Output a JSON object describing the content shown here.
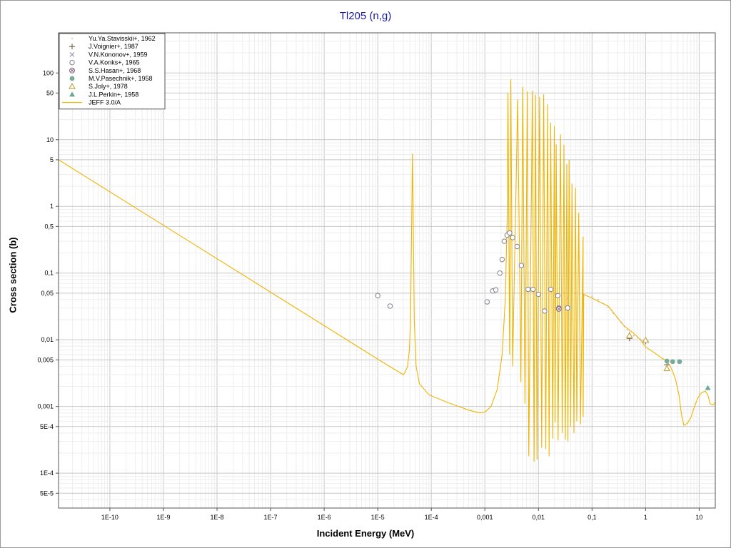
{
  "chart_data": {
    "type": "scatter",
    "title": "Tl205 (n,g)",
    "xlabel": "Incident Energy (MeV)",
    "ylabel": "Cross section (b)",
    "xscale": "log",
    "yscale": "log",
    "xlim": [
      1.1e-11,
      20
    ],
    "ylim": [
      3e-05,
      400
    ],
    "grid": true,
    "legend_position": "top-left",
    "x_tick_labels": [
      {
        "v": 1e-10,
        "t": "1E-10"
      },
      {
        "v": 1e-09,
        "t": "1E-9"
      },
      {
        "v": 1e-08,
        "t": "1E-8"
      },
      {
        "v": 1e-07,
        "t": "1E-7"
      },
      {
        "v": 1e-06,
        "t": "1E-6"
      },
      {
        "v": 1e-05,
        "t": "1E-5"
      },
      {
        "v": 0.0001,
        "t": "1E-4"
      },
      {
        "v": 0.001,
        "t": "0,001"
      },
      {
        "v": 0.01,
        "t": "0,01"
      },
      {
        "v": 0.1,
        "t": "0,1"
      },
      {
        "v": 1,
        "t": "1"
      },
      {
        "v": 10,
        "t": "10"
      }
    ],
    "y_tick_labels": [
      {
        "v": 5e-05,
        "t": "5E-5"
      },
      {
        "v": 0.0001,
        "t": "1E-4"
      },
      {
        "v": 0.0005,
        "t": "5E-4"
      },
      {
        "v": 0.001,
        "t": "0,001"
      },
      {
        "v": 0.005,
        "t": "0,005"
      },
      {
        "v": 0.01,
        "t": "0,01"
      },
      {
        "v": 0.05,
        "t": "0,05"
      },
      {
        "v": 0.1,
        "t": "0,1"
      },
      {
        "v": 0.5,
        "t": "0,5"
      },
      {
        "v": 1,
        "t": "1"
      },
      {
        "v": 5,
        "t": "5"
      },
      {
        "v": 10,
        "t": "10"
      },
      {
        "v": 50,
        "t": "50"
      },
      {
        "v": 100,
        "t": "100"
      }
    ],
    "legend": [
      {
        "label": "Yu.Ya.Stavisskii+, 1962",
        "marker": "dot",
        "color": "#c2a898"
      },
      {
        "label": "J.Voignier+, 1987",
        "marker": "plus",
        "color": "#7a6a4a"
      },
      {
        "label": "V.N.Kononov+, 1959",
        "marker": "cross",
        "color": "#9a9aaa"
      },
      {
        "label": "V.A.Konks+, 1965",
        "marker": "circle",
        "color": "#8a8a98"
      },
      {
        "label": "S.S.Hasan+, 1968",
        "marker": "circlex",
        "color": "#8a6a8a"
      },
      {
        "label": "M.V.Pasechnik+, 1958",
        "marker": "filledcircle",
        "color": "#7aaa9a"
      },
      {
        "label": "S.Joly+, 1978",
        "marker": "triangle",
        "color": "#c0a040"
      },
      {
        "label": "J.L.Perkin+, 1958",
        "marker": "filledtriangle",
        "color": "#6aa898"
      },
      {
        "label": "JEFF 3.0/A",
        "marker": "line",
        "color": "#f0b400"
      }
    ],
    "series": [
      {
        "name": "V.A.Konks+, 1965",
        "points": [
          [
            1e-05,
            0.046
          ],
          [
            1.7e-05,
            0.032
          ],
          [
            0.0011,
            0.037
          ],
          [
            0.0014,
            0.054
          ],
          [
            0.0016,
            0.056
          ],
          [
            0.0019,
            0.1
          ],
          [
            0.0021,
            0.16
          ],
          [
            0.0023,
            0.3
          ],
          [
            0.0026,
            0.37
          ],
          [
            0.0029,
            0.4
          ],
          [
            0.0033,
            0.34
          ],
          [
            0.004,
            0.25
          ],
          [
            0.0048,
            0.13
          ],
          [
            0.0064,
            0.057
          ],
          [
            0.0079,
            0.057
          ],
          [
            0.01,
            0.048
          ],
          [
            0.013,
            0.027
          ],
          [
            0.017,
            0.057
          ],
          [
            0.023,
            0.046
          ],
          [
            0.024,
            0.03
          ],
          [
            0.035,
            0.03
          ]
        ]
      },
      {
        "name": "S.S.Hasan+, 1968",
        "points": [
          [
            0.024,
            0.029
          ]
        ]
      },
      {
        "name": "J.Voignier+, 1987",
        "points": [
          [
            0.5,
            0.0105
          ],
          [
            1.0,
            0.0095
          ],
          [
            2.5,
            0.0042
          ]
        ]
      },
      {
        "name": "S.Joly+, 1978",
        "points": [
          [
            0.5,
            0.0115
          ],
          [
            1.0,
            0.0098
          ],
          [
            2.5,
            0.0037
          ]
        ]
      },
      {
        "name": "M.V.Pasechnik+, 1958",
        "points": [
          [
            2.5,
            0.0048
          ],
          [
            3.2,
            0.0047
          ],
          [
            4.3,
            0.0047
          ]
        ]
      },
      {
        "name": "J.L.Perkin+, 1958",
        "points": [
          [
            14.5,
            0.0019
          ]
        ]
      },
      {
        "name": "Yu.Ya.Stavisskii+, 1962",
        "points": [
          [
            0.025,
            0.045
          ],
          [
            0.03,
            0.05
          ],
          [
            0.035,
            0.042
          ],
          [
            0.05,
            0.05
          ],
          [
            0.07,
            0.048
          ],
          [
            0.1,
            0.045
          ],
          [
            0.13,
            0.04
          ],
          [
            0.16,
            0.035
          ],
          [
            0.2,
            0.031
          ],
          [
            0.25,
            0.025
          ],
          [
            0.3,
            0.021
          ],
          [
            0.35,
            0.018
          ],
          [
            0.4,
            0.016
          ],
          [
            0.45,
            0.014
          ],
          [
            0.5,
            0.013
          ],
          [
            0.6,
            0.0115
          ],
          [
            0.7,
            0.0108
          ],
          [
            0.8,
            0.0102
          ],
          [
            0.9,
            0.0096
          ]
        ]
      }
    ],
    "evaluated_curve": {
      "name": "JEFF 3.0/A",
      "baseline": [
        [
          1.1e-11,
          5.0
        ],
        [
          2e-06,
          0.0115
        ],
        [
          1.3e-05,
          0.0045
        ],
        [
          3e-05,
          0.003
        ]
      ],
      "resonance1": {
        "points": [
          [
            3.2e-05,
            0.0032
          ],
          [
            3.6e-05,
            0.004
          ],
          [
            3.9e-05,
            0.007
          ],
          [
            4.1e-05,
            0.02
          ],
          [
            4.3e-05,
            0.6
          ],
          [
            4.45e-05,
            6.2
          ],
          [
            4.6e-05,
            0.6
          ],
          [
            4.8e-05,
            0.02
          ],
          [
            5.2e-05,
            0.004
          ],
          [
            6e-05,
            0.0022
          ],
          [
            9e-05,
            0.0015
          ],
          [
            0.0002,
            0.00115
          ],
          [
            0.0005,
            0.00088
          ],
          [
            0.0008,
            0.0008
          ],
          [
            0.001,
            0.00082
          ],
          [
            0.0013,
            0.001
          ],
          [
            0.0017,
            0.0018
          ],
          [
            0.0021,
            0.006
          ],
          [
            0.0024,
            0.04
          ],
          [
            0.0026,
            0.6
          ],
          [
            0.0027,
            50
          ]
        ]
      },
      "resonances_high": [
        [
          0.0027,
          50
        ],
        [
          0.00305,
          80
        ],
        [
          0.0041,
          40
        ],
        [
          0.0051,
          62
        ],
        [
          0.0062,
          53
        ],
        [
          0.0077,
          54
        ],
        [
          0.0088,
          47
        ],
        [
          0.0105,
          44
        ],
        [
          0.0125,
          48
        ],
        [
          0.0148,
          34
        ],
        [
          0.0169,
          18
        ],
        [
          0.0198,
          16
        ],
        [
          0.0214,
          8.5
        ],
        [
          0.0258,
          12
        ],
        [
          0.0299,
          8.4
        ],
        [
          0.0338,
          4.3
        ],
        [
          0.0373,
          5
        ],
        [
          0.0422,
          2.2
        ],
        [
          0.049,
          1.9
        ],
        [
          0.0564,
          0.8
        ],
        [
          0.068,
          0.35
        ]
      ],
      "valleys": [
        [
          0.0029,
          0.006
        ],
        [
          0.0033,
          0.004
        ],
        [
          0.0047,
          0.0023
        ],
        [
          0.0056,
          0.0011
        ],
        [
          0.0066,
          0.00018
        ],
        [
          0.0083,
          0.00015
        ],
        [
          0.0094,
          0.00016
        ],
        [
          0.0115,
          0.00024
        ],
        [
          0.0137,
          0.00023
        ],
        [
          0.0158,
          0.00018
        ],
        [
          0.0185,
          0.00033
        ],
        [
          0.0205,
          0.00058
        ],
        [
          0.0233,
          0.00031
        ],
        [
          0.0278,
          0.0004
        ],
        [
          0.0318,
          0.00032
        ],
        [
          0.0355,
          0.0003
        ],
        [
          0.04,
          0.0005
        ],
        [
          0.046,
          0.0004
        ],
        [
          0.052,
          0.0006
        ],
        [
          0.061,
          0.00054
        ],
        [
          0.068,
          0.0007
        ]
      ],
      "fast": [
        [
          0.07,
          0.048
        ],
        [
          0.1,
          0.042
        ],
        [
          0.2,
          0.032
        ],
        [
          0.4,
          0.016
        ],
        [
          0.6,
          0.0125
        ],
        [
          0.8,
          0.01
        ],
        [
          1.0,
          0.0078
        ],
        [
          1.5,
          0.0063
        ],
        [
          2.0,
          0.0053
        ],
        [
          2.5,
          0.0048
        ],
        [
          3.0,
          0.0038
        ],
        [
          3.6,
          0.0026
        ],
        [
          4.2,
          0.0015
        ],
        [
          4.7,
          0.00073
        ],
        [
          5.2,
          0.00052
        ],
        [
          6.0,
          0.00056
        ],
        [
          7.0,
          0.00068
        ],
        [
          8.0,
          0.00095
        ],
        [
          9.5,
          0.00135
        ],
        [
          11,
          0.0016
        ],
        [
          13,
          0.0017
        ],
        [
          14.5,
          0.0015
        ],
        [
          16,
          0.0011
        ],
        [
          18,
          0.00105
        ],
        [
          20,
          0.00115
        ]
      ]
    }
  }
}
